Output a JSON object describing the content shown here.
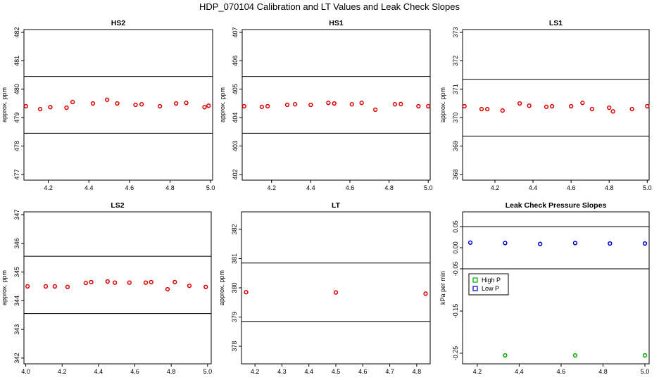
{
  "title": "HDP_070104  Calibration and LT Values and Leak Check Slopes",
  "chart_data": [
    {
      "type": "scatter",
      "title": "HS2",
      "ylabel": "approx. ppm",
      "xlim": [
        4.08,
        5.01
      ],
      "ylim": [
        476.8,
        482.1
      ],
      "xticks": [
        "4.2",
        "4.4",
        "4.6",
        "4.8",
        "5.0"
      ],
      "xtick_values": [
        4.2,
        4.4,
        4.6,
        4.8,
        5.0
      ],
      "yticks": [
        "477",
        "478",
        "479",
        "480",
        "481",
        "482"
      ],
      "ytick_values": [
        477,
        478,
        479,
        480,
        481,
        482
      ],
      "hlines": [
        480.45,
        478.45
      ],
      "marker_color": "#dd0000",
      "x": [
        4.09,
        4.16,
        4.21,
        4.29,
        4.32,
        4.42,
        4.49,
        4.54,
        4.63,
        4.66,
        4.75,
        4.83,
        4.88,
        4.97,
        4.99
      ],
      "y": [
        479.4,
        479.3,
        479.37,
        479.35,
        479.55,
        479.5,
        479.63,
        479.5,
        479.45,
        479.47,
        479.4,
        479.5,
        479.52,
        479.37,
        479.42
      ]
    },
    {
      "type": "scatter",
      "title": "HS1",
      "ylabel": "approx. ppm",
      "xlim": [
        4.05,
        5.01
      ],
      "ylim": [
        401.8,
        407.1
      ],
      "xticks": [
        "4.2",
        "4.4",
        "4.6",
        "4.8",
        "5.0"
      ],
      "xtick_values": [
        4.2,
        4.4,
        4.6,
        4.8,
        5.0
      ],
      "yticks": [
        "402",
        "403",
        "404",
        "405",
        "406",
        "407"
      ],
      "ytick_values": [
        402,
        403,
        404,
        405,
        406,
        407
      ],
      "hlines": [
        405.45,
        403.45
      ],
      "marker_color": "#dd0000",
      "x": [
        4.06,
        4.15,
        4.18,
        4.28,
        4.32,
        4.4,
        4.49,
        4.52,
        4.61,
        4.66,
        4.73,
        4.83,
        4.86,
        4.95,
        5.0
      ],
      "y": [
        404.4,
        404.38,
        404.4,
        404.45,
        404.47,
        404.45,
        404.52,
        404.5,
        404.47,
        404.52,
        404.28,
        404.47,
        404.48,
        404.4,
        404.4
      ]
    },
    {
      "type": "scatter",
      "title": "LS1",
      "ylabel": "approx. ppm",
      "xlim": [
        4.03,
        5.01
      ],
      "ylim": [
        367.8,
        373.1
      ],
      "xticks": [
        "4.2",
        "4.4",
        "4.6",
        "4.8",
        "5.0"
      ],
      "xtick_values": [
        4.2,
        4.4,
        4.6,
        4.8,
        5.0
      ],
      "yticks": [
        "368",
        "369",
        "370",
        "371",
        "372",
        "373"
      ],
      "ytick_values": [
        368,
        369,
        370,
        371,
        372,
        373
      ],
      "hlines": [
        371.35,
        369.35
      ],
      "marker_color": "#dd0000",
      "x": [
        4.04,
        4.13,
        4.16,
        4.24,
        4.33,
        4.38,
        4.47,
        4.5,
        4.6,
        4.66,
        4.71,
        4.8,
        4.82,
        4.92,
        5.0
      ],
      "y": [
        370.4,
        370.3,
        370.3,
        370.25,
        370.5,
        370.42,
        370.38,
        370.4,
        370.4,
        370.52,
        370.3,
        370.35,
        370.22,
        370.3,
        370.4
      ]
    },
    {
      "type": "scatter",
      "title": "LS2",
      "ylabel": "approx. ppm",
      "xlim": [
        3.99,
        5.02
      ],
      "ylim": [
        341.8,
        347.1
      ],
      "xticks": [
        "4.0",
        "4.2",
        "4.4",
        "4.6",
        "4.8",
        "5.0"
      ],
      "xtick_values": [
        4.0,
        4.2,
        4.4,
        4.6,
        4.8,
        5.0
      ],
      "yticks": [
        "342",
        "343",
        "344",
        "345",
        "346",
        "347"
      ],
      "ytick_values": [
        342,
        343,
        344,
        345,
        346,
        347
      ],
      "hlines": [
        345.55,
        343.55
      ],
      "marker_color": "#dd0000",
      "x": [
        4.01,
        4.11,
        4.16,
        4.23,
        4.33,
        4.36,
        4.45,
        4.49,
        4.57,
        4.66,
        4.69,
        4.78,
        4.82,
        4.9,
        4.99
      ],
      "y": [
        344.5,
        344.5,
        344.5,
        344.48,
        344.62,
        344.65,
        344.67,
        344.63,
        344.63,
        344.63,
        344.65,
        344.4,
        344.65,
        344.52,
        344.48
      ]
    },
    {
      "type": "scatter",
      "title": "LT",
      "ylabel": "approx. ppm",
      "xlim": [
        4.15,
        4.85
      ],
      "ylim": [
        377.4,
        382.6
      ],
      "xticks": [
        "4.2",
        "4.3",
        "4.4",
        "4.5",
        "4.6",
        "4.7",
        "4.8"
      ],
      "xtick_values": [
        4.2,
        4.3,
        4.4,
        4.5,
        4.6,
        4.7,
        4.8
      ],
      "yticks": [
        "378",
        "379",
        "380",
        "381",
        "382"
      ],
      "ytick_values": [
        378,
        379,
        380,
        381,
        382
      ],
      "hlines": [
        380.85,
        378.85
      ],
      "marker_color": "#dd0000",
      "x": [
        4.167,
        4.5,
        4.833
      ],
      "y": [
        379.85,
        379.84,
        379.8
      ]
    },
    {
      "type": "scatter",
      "title": "Leak Check Pressure Slopes",
      "ylabel": "kPa per min",
      "xlim": [
        4.13,
        5.02
      ],
      "ylim": [
        -0.275,
        0.085
      ],
      "xticks": [
        "4.2",
        "4.4",
        "4.6",
        "4.8",
        "5.0"
      ],
      "xtick_values": [
        4.2,
        4.4,
        4.6,
        4.8,
        5.0
      ],
      "yticks": [
        "-0.25",
        "-0.15",
        "-0.05",
        "0.00",
        "0.05"
      ],
      "ytick_values": [
        -0.25,
        -0.15,
        -0.05,
        0.0,
        0.05
      ],
      "hlines": [
        0.05,
        -0.05
      ],
      "legend": {
        "position": "left",
        "entries": [
          {
            "label": "High P",
            "color": "#00aa00"
          },
          {
            "label": "Low P",
            "color": "#0000cc"
          }
        ]
      },
      "series": [
        {
          "name": "High P",
          "color": "#00aa00",
          "x": [
            4.333,
            4.667,
            5.0
          ],
          "y": [
            -0.255,
            -0.255,
            -0.255
          ]
        },
        {
          "name": "Low P",
          "color": "#0000cc",
          "x": [
            4.167,
            4.333,
            4.5,
            4.667,
            4.833,
            5.0
          ],
          "y": [
            0.012,
            0.011,
            0.009,
            0.011,
            0.01,
            0.01
          ]
        }
      ]
    }
  ]
}
